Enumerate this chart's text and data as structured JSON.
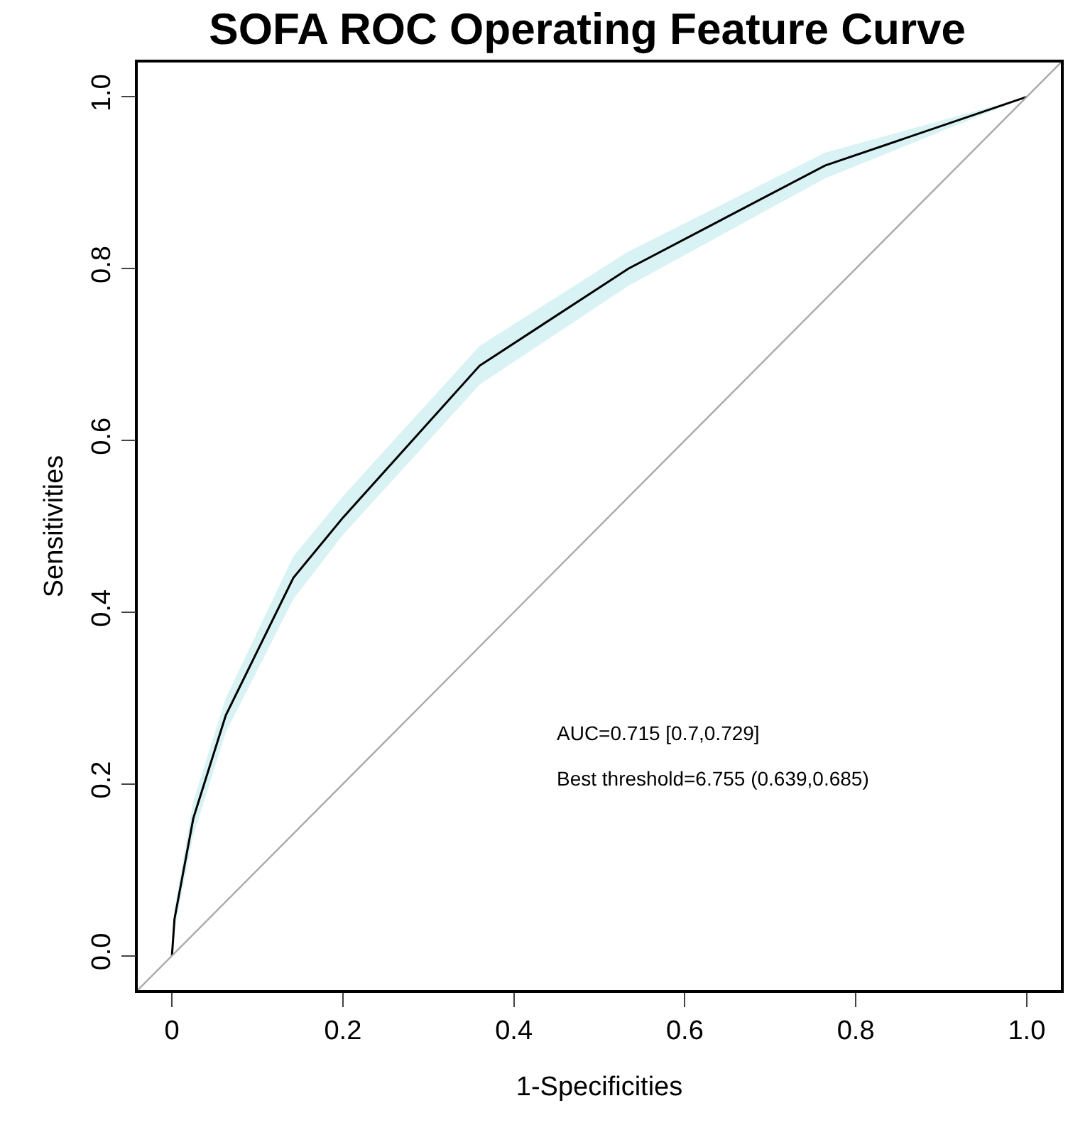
{
  "chart_data": {
    "type": "line",
    "title": "SOFA ROC Operating Feature Curve",
    "xlabel": "1-Specificities",
    "ylabel": "Sensitivities",
    "x": [
      0,
      0.003,
      0.025,
      0.063,
      0.142,
      0.2,
      0.36,
      0.534,
      0.764,
      1
    ],
    "series": [
      {
        "color": "#000000",
        "values": [
          0,
          0.043,
          0.16,
          0.28,
          0.44,
          0.51,
          0.687,
          0.8,
          0.92,
          1
        ],
        "lower": [
          0,
          0.03,
          0.14,
          0.26,
          0.415,
          0.49,
          0.665,
          0.78,
          0.905,
          1
        ],
        "upper": [
          0,
          0.055,
          0.18,
          0.3,
          0.465,
          0.535,
          0.71,
          0.82,
          0.935,
          1
        ]
      },
      {
        "type": "line",
        "color": "#aaaaaa",
        "x": [
          -0.04,
          1.04
        ],
        "values": [
          -0.04,
          1.04
        ]
      }
    ],
    "xlim": [
      -0.04,
      1.04
    ],
    "ylim": [
      -0.04,
      1.04
    ],
    "xticks": [
      0,
      0.2,
      0.4,
      0.6,
      0.8,
      {
        "value": 1,
        "label": "1.0"
      }
    ],
    "yticks": [
      {
        "value": 0,
        "label": "0.0"
      },
      0.2,
      0.4,
      0.6,
      0.8,
      {
        "value": 1,
        "label": "1.0"
      }
    ],
    "annotations": [
      "AUC=0.715 [0.7,0.729]",
      "Best threshold=6.755 (0.639,0.685)"
    ]
  }
}
